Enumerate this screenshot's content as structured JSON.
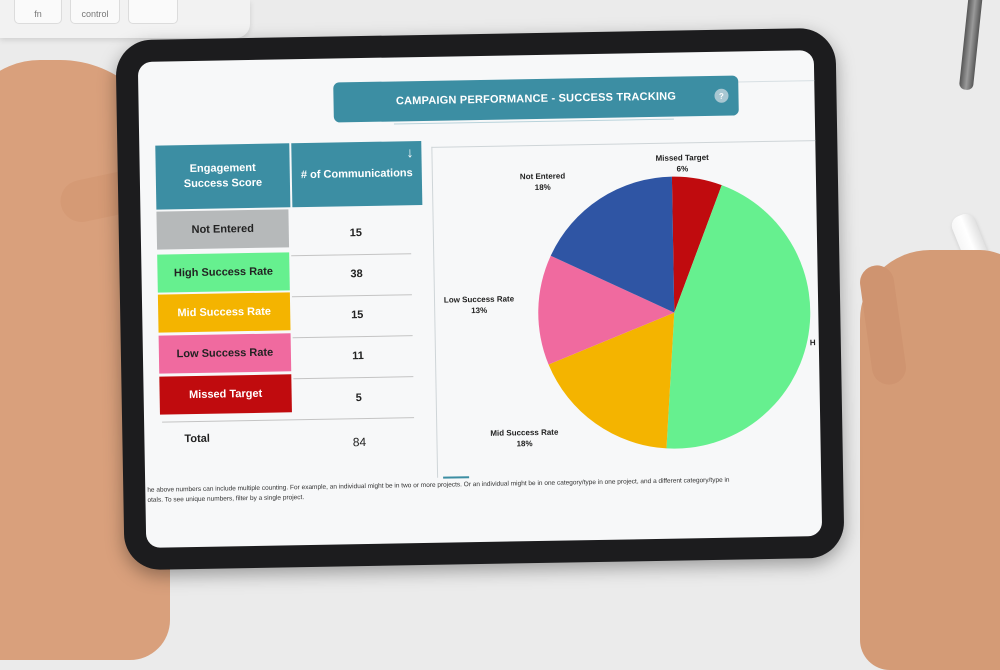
{
  "dashboard": {
    "title": "CAMPAIGN PERFORMANCE - SUCCESS TRACKING",
    "help_icon": "?"
  },
  "table": {
    "headers": [
      "Engagement Success Score",
      "# of Communications"
    ],
    "sort_icon": "↓",
    "rows": [
      {
        "label": "Not Entered",
        "value": "15",
        "color": "#b6b9ba"
      },
      {
        "label": "High Success Rate",
        "value": "38",
        "color": "#66f08f"
      },
      {
        "label": "Mid Success Rate",
        "value": "15",
        "color": "#f4b400"
      },
      {
        "label": "Low Success Rate",
        "value": "11",
        "color": "#f06a9f"
      },
      {
        "label": "Missed Target",
        "value": "5",
        "color": "#c00b0e"
      }
    ],
    "total_label": "Total",
    "total_value": "84"
  },
  "chart_data": {
    "type": "pie",
    "categories": [
      "Missed Target",
      "High Success Rate",
      "Mid Success Rate",
      "Low Success Rate",
      "Not Entered"
    ],
    "values": [
      5,
      38,
      15,
      11,
      15
    ],
    "colors": [
      "#c00b0e",
      "#66f08f",
      "#f4b400",
      "#f06a9f",
      "#2f55a4"
    ],
    "labels": [
      {
        "name": "Missed Target",
        "pct": "6%"
      },
      {
        "name": "H",
        "pct": ""
      },
      {
        "name": "Mid Success Rate",
        "pct": "18%"
      },
      {
        "name": "Low Success Rate",
        "pct": "13%"
      },
      {
        "name": "Not Entered",
        "pct": "18%"
      }
    ]
  },
  "footnote": {
    "line1": "he above numbers can include multiple counting. For example, an individual might be in two or more projects. Or an individual might be in one category/type in one project, and a different category/type in",
    "line2": "otals. To see unique numbers, filter by a single project."
  },
  "scene": {
    "keyboard_keys": [
      "fn",
      "control"
    ]
  }
}
